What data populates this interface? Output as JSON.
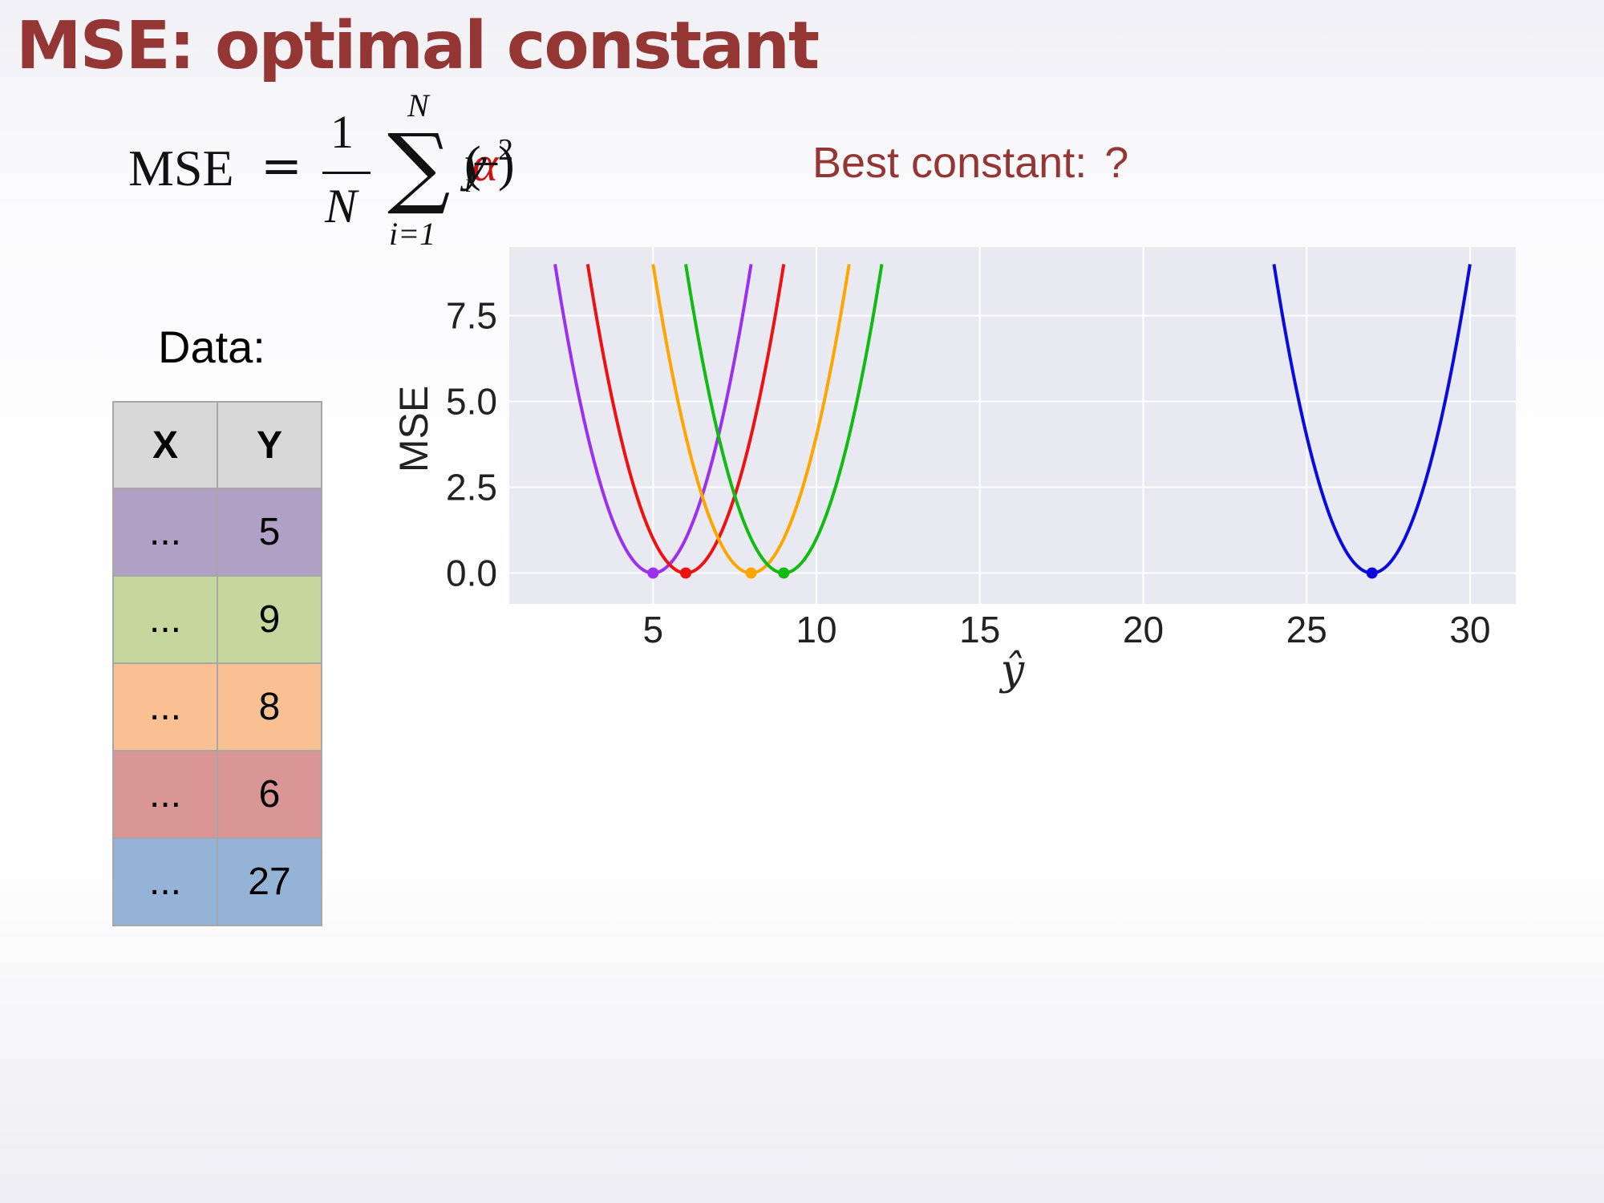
{
  "slide": {
    "title": "MSE: optimal constant",
    "formula": {
      "lhs": "MSE",
      "equals": "=",
      "numerator": "1",
      "denominator": "N",
      "sum_top": "N",
      "sum_symbol": "∑",
      "sum_bottom": "i=1",
      "open": "(",
      "var": "y",
      "sub": "i",
      "minus": " − ",
      "alpha": "α",
      "close": ")",
      "power": "2"
    },
    "best_constant_label": "Best constant:",
    "best_constant_value": "?",
    "data_label": "Data:"
  },
  "table": {
    "headers": [
      "X",
      "Y"
    ],
    "rows": [
      {
        "x": "...",
        "y": "5",
        "color": "#b0a0c5"
      },
      {
        "x": "...",
        "y": "9",
        "color": "#c6d79e"
      },
      {
        "x": "...",
        "y": "8",
        "color": "#f9c092"
      },
      {
        "x": "...",
        "y": "6",
        "color": "#d99695"
      },
      {
        "x": "...",
        "y": "27",
        "color": "#94b3d6"
      }
    ]
  },
  "chart_data": {
    "type": "line",
    "xlabel": "ŷ",
    "ylabel": "MSE",
    "xlim": [
      0.6,
      31.4
    ],
    "ylim": [
      -0.9,
      9.5
    ],
    "xticks": [
      5,
      10,
      15,
      20,
      25,
      30
    ],
    "yticks": [
      0.0,
      2.5,
      5.0,
      7.5
    ],
    "xtick_labels": [
      "5",
      "10",
      "15",
      "20",
      "25",
      "30"
    ],
    "ytick_labels": [
      "0.0",
      "2.5",
      "5.0",
      "7.5"
    ],
    "grid": true,
    "background": "#e9e9f1",
    "series": [
      {
        "center": 5,
        "x_range": [
          2,
          8
        ],
        "formula": "(ŷ − 5)^2",
        "color": "#9b30f0",
        "min_point": [
          5,
          0
        ]
      },
      {
        "center": 6,
        "x_range": [
          3,
          9
        ],
        "formula": "(ŷ − 6)^2",
        "color": "#ee1111",
        "min_point": [
          6,
          0
        ]
      },
      {
        "center": 8,
        "x_range": [
          5,
          11
        ],
        "formula": "(ŷ − 8)^2",
        "color": "#ffa500",
        "min_point": [
          8,
          0
        ]
      },
      {
        "center": 9,
        "x_range": [
          6,
          12
        ],
        "formula": "(ŷ − 9)^2",
        "color": "#11bb11",
        "min_point": [
          9,
          0
        ]
      },
      {
        "center": 27,
        "x_range": [
          24,
          30
        ],
        "formula": "(ŷ − 27)^2",
        "color": "#0a0ae0",
        "min_point": [
          27,
          0
        ]
      }
    ]
  }
}
